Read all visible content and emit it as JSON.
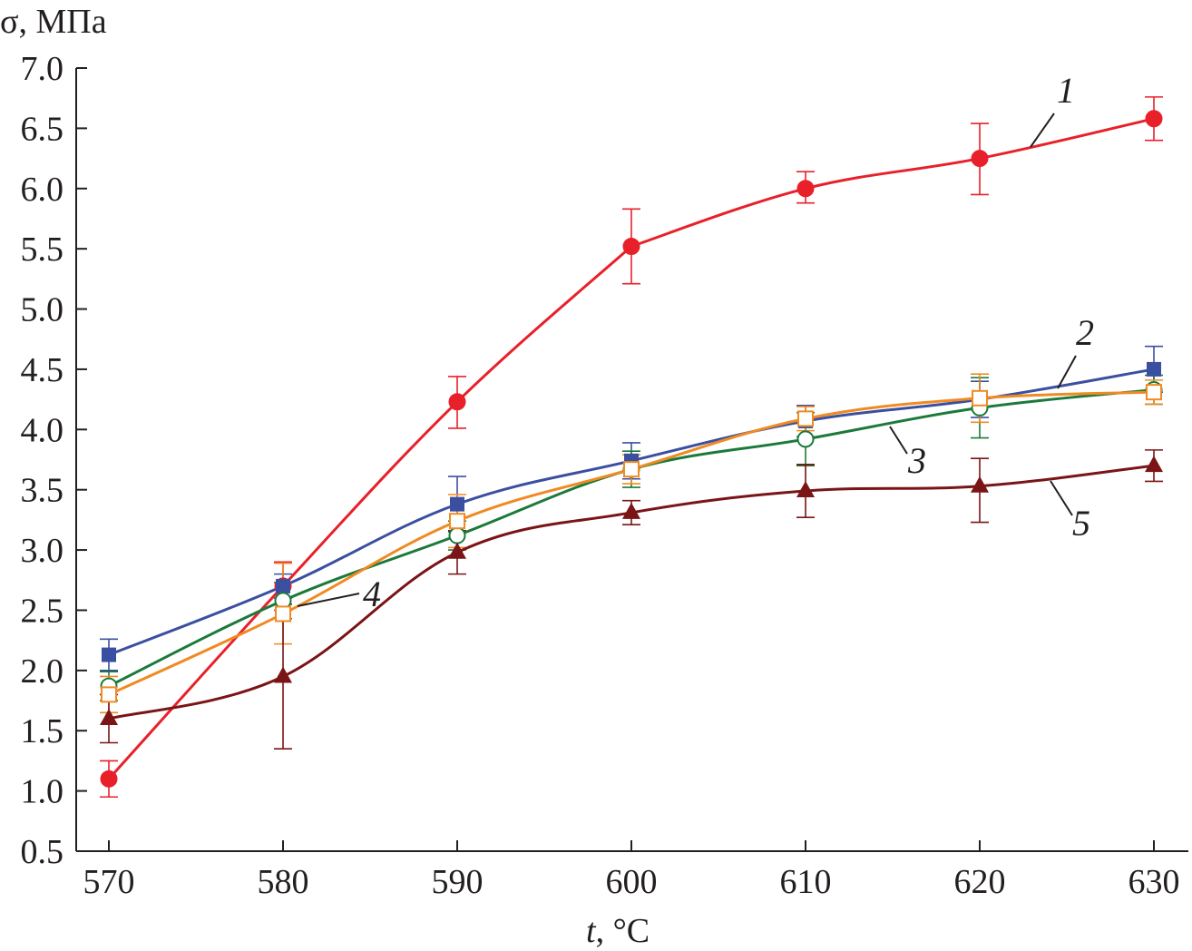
{
  "chart_data": {
    "type": "line",
    "ylabel": "σ, МПа",
    "xlabel_italic": "t",
    "xlabel_unit": ", °C",
    "x": [
      570,
      580,
      590,
      600,
      610,
      620,
      630
    ],
    "xlim": [
      568,
      632
    ],
    "ylim": [
      0.5,
      7.0
    ],
    "x_ticks": [
      "570",
      "580",
      "590",
      "600",
      "610",
      "620",
      "630"
    ],
    "y_ticks": [
      "0.5",
      "1.0",
      "1.5",
      "2.0",
      "2.5",
      "3.0",
      "3.5",
      "4.0",
      "4.5",
      "5.0",
      "5.5",
      "6.0",
      "6.5",
      "7.0"
    ],
    "grid": false,
    "series": [
      {
        "name": "1",
        "color": "#e8202a",
        "marker": "filled-circle",
        "values": [
          1.1,
          2.7,
          4.23,
          5.52,
          6.0,
          6.25,
          6.58
        ],
        "err_low": [
          0.15,
          0.2,
          0.22,
          0.31,
          0.12,
          0.3,
          0.18
        ],
        "err_high": [
          0.15,
          0.2,
          0.21,
          0.31,
          0.14,
          0.29,
          0.18
        ]
      },
      {
        "name": "2",
        "color": "#3b4fa0",
        "marker": "filled-square",
        "values": [
          2.13,
          2.7,
          3.38,
          3.74,
          4.07,
          4.25,
          4.5
        ],
        "err_low": [
          0.13,
          0.1,
          0.23,
          0.15,
          0.13,
          0.15,
          0.19
        ],
        "err_high": [
          0.13,
          0.1,
          0.23,
          0.15,
          0.13,
          0.15,
          0.19
        ]
      },
      {
        "name": "3",
        "color": "#1b7a3a",
        "marker": "open-circle",
        "values": [
          1.87,
          2.58,
          3.12,
          3.67,
          3.92,
          4.18,
          4.33
        ],
        "err_low": [
          0.12,
          0.15,
          0.12,
          0.15,
          0.22,
          0.25,
          0.12
        ],
        "err_high": [
          0.12,
          0.15,
          0.12,
          0.15,
          0.22,
          0.25,
          0.12
        ]
      },
      {
        "name": "4",
        "color": "#f08a22",
        "marker": "open-square",
        "values": [
          1.8,
          2.47,
          3.24,
          3.67,
          4.09,
          4.26,
          4.31
        ],
        "err_low": [
          0.15,
          0.25,
          0.22,
          0.12,
          0.1,
          0.2,
          0.1
        ],
        "err_high": [
          0.15,
          0.42,
          0.22,
          0.12,
          0.1,
          0.2,
          0.1
        ]
      },
      {
        "name": "5",
        "color": "#7a1416",
        "marker": "filled-triangle",
        "values": [
          1.6,
          1.95,
          2.98,
          3.31,
          3.49,
          3.53,
          3.7
        ],
        "err_low": [
          0.2,
          0.6,
          0.18,
          0.1,
          0.22,
          0.3,
          0.13
        ],
        "err_high": [
          0.2,
          0.6,
          0.18,
          0.1,
          0.22,
          0.23,
          0.13
        ]
      }
    ]
  }
}
